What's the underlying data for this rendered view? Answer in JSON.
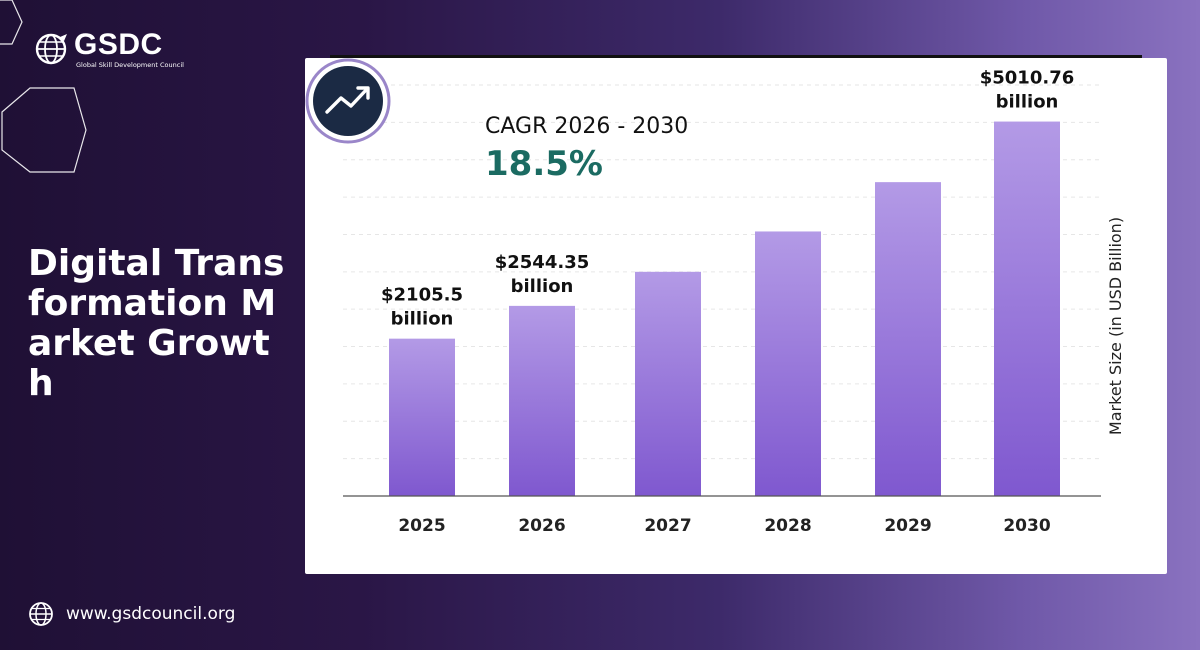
{
  "brand": {
    "name": "GSDC",
    "tagline": "Global Skill Development Council"
  },
  "headline": "Digital Transformation Market Growth",
  "footer": {
    "url": "www.gsdcouncil.org",
    "icon": "globe-icon"
  },
  "cagr": {
    "label": "CAGR 2026 - 2030",
    "value": "18.5%",
    "icon": "trend-up-icon"
  },
  "colors": {
    "bar_top": "#b39ae6",
    "bar_bottom": "#7f58cf",
    "cagr_value": "#1b6b62",
    "circle": "#1b2a44"
  },
  "chart_data": {
    "type": "bar",
    "categories": [
      "2025",
      "2026",
      "2027",
      "2028",
      "2029",
      "2030"
    ],
    "values": [
      2105.5,
      2544.35,
      3000,
      3540,
      4200,
      5010.76
    ],
    "data_labels": [
      [
        "$2105.5",
        "billion"
      ],
      [
        "$2544.35",
        "billion"
      ],
      null,
      null,
      null,
      [
        "$5010.76",
        "billion"
      ]
    ],
    "xlabel": "",
    "ylabel": "Market Size (in USD Billion)",
    "ylim": [
      0,
      5500
    ],
    "grid": true,
    "grid_lines": 11
  }
}
